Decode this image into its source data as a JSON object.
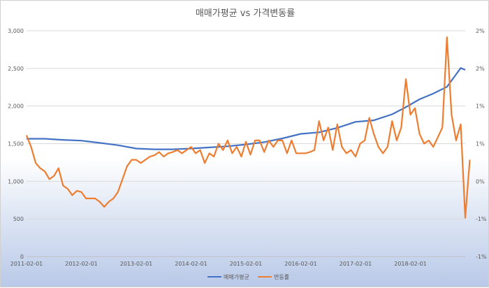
{
  "chart_data": {
    "type": "line",
    "title": "매매가평균 vs 가격변동률",
    "x_tick_labels": [
      "2011-02-01",
      "2012-02-01",
      "2013-02-01",
      "2014-02-01",
      "2015-02-01",
      "2016-02-01",
      "2017-02-01",
      "2018-02-01"
    ],
    "x_range": [
      "2011-02-01",
      "2019-02-01"
    ],
    "y_left": {
      "range": [
        0,
        3000
      ],
      "tick_labels": [
        "0",
        "500",
        "1,000",
        "1,500",
        "2,000",
        "2,500",
        "3,000"
      ]
    },
    "y_right": {
      "range": [
        -1.5,
        2.0
      ],
      "tick_labels": [
        "-1%",
        "-1%",
        "0%",
        "1%",
        "1%",
        "2%",
        "2%"
      ]
    },
    "grid": "horizontal",
    "legend_position": "bottom",
    "series": [
      {
        "name": "매매가평균",
        "axis": "left",
        "color": "#4472c4",
        "points": [
          [
            "2011-02",
            1565
          ],
          [
            "2011-06",
            1565
          ],
          [
            "2011-10",
            1550
          ],
          [
            "2012-02",
            1540
          ],
          [
            "2012-06",
            1510
          ],
          [
            "2012-10",
            1480
          ],
          [
            "2013-02",
            1435
          ],
          [
            "2013-06",
            1425
          ],
          [
            "2013-10",
            1425
          ],
          [
            "2014-02",
            1435
          ],
          [
            "2014-06",
            1450
          ],
          [
            "2014-10",
            1465
          ],
          [
            "2015-02",
            1490
          ],
          [
            "2015-06",
            1520
          ],
          [
            "2015-10",
            1570
          ],
          [
            "2016-02",
            1630
          ],
          [
            "2016-06",
            1650
          ],
          [
            "2016-10",
            1710
          ],
          [
            "2017-02",
            1790
          ],
          [
            "2017-06",
            1810
          ],
          [
            "2017-10",
            1890
          ],
          [
            "2018-01",
            1985
          ],
          [
            "2018-04",
            2090
          ],
          [
            "2018-07",
            2165
          ],
          [
            "2018-10",
            2255
          ],
          [
            "2018-12",
            2420
          ],
          [
            "2019-01",
            2505
          ],
          [
            "2019-02",
            2480
          ]
        ]
      },
      {
        "name": "변동률",
        "axis": "right",
        "color": "#ed7d31",
        "points": [
          [
            "2011-02",
            0.38
          ],
          [
            "2011-03",
            0.2
          ],
          [
            "2011-04",
            -0.05
          ],
          [
            "2011-05",
            -0.13
          ],
          [
            "2011-06",
            -0.18
          ],
          [
            "2011-07",
            -0.3
          ],
          [
            "2011-08",
            -0.25
          ],
          [
            "2011-09",
            -0.13
          ],
          [
            "2011-10",
            -0.4
          ],
          [
            "2011-11",
            -0.45
          ],
          [
            "2011-12",
            -0.55
          ],
          [
            "2012-01",
            -0.48
          ],
          [
            "2012-02",
            -0.5
          ],
          [
            "2012-03",
            -0.6
          ],
          [
            "2012-04",
            -0.6
          ],
          [
            "2012-05",
            -0.6
          ],
          [
            "2012-06",
            -0.65
          ],
          [
            "2012-07",
            -0.73
          ],
          [
            "2012-08",
            -0.65
          ],
          [
            "2012-09",
            -0.6
          ],
          [
            "2012-10",
            -0.5
          ],
          [
            "2012-11",
            -0.3
          ],
          [
            "2012-12",
            -0.1
          ],
          [
            "2013-01",
            0.0
          ],
          [
            "2013-02",
            0.0
          ],
          [
            "2013-03",
            -0.05
          ],
          [
            "2013-04",
            0.0
          ],
          [
            "2013-05",
            0.05
          ],
          [
            "2013-06",
            0.07
          ],
          [
            "2013-07",
            0.12
          ],
          [
            "2013-08",
            0.05
          ],
          [
            "2013-09",
            0.1
          ],
          [
            "2013-10",
            0.12
          ],
          [
            "2013-11",
            0.15
          ],
          [
            "2013-12",
            0.1
          ],
          [
            "2014-01",
            0.15
          ],
          [
            "2014-02",
            0.2
          ],
          [
            "2014-03",
            0.1
          ],
          [
            "2014-04",
            0.15
          ],
          [
            "2014-05",
            -0.05
          ],
          [
            "2014-06",
            0.1
          ],
          [
            "2014-07",
            0.05
          ],
          [
            "2014-08",
            0.25
          ],
          [
            "2014-09",
            0.15
          ],
          [
            "2014-10",
            0.3
          ],
          [
            "2014-11",
            0.1
          ],
          [
            "2014-12",
            0.2
          ],
          [
            "2015-01",
            0.05
          ],
          [
            "2015-02",
            0.28
          ],
          [
            "2015-03",
            0.08
          ],
          [
            "2015-04",
            0.3
          ],
          [
            "2015-05",
            0.3
          ],
          [
            "2015-06",
            0.12
          ],
          [
            "2015-07",
            0.3
          ],
          [
            "2015-08",
            0.2
          ],
          [
            "2015-09",
            0.3
          ],
          [
            "2015-10",
            0.3
          ],
          [
            "2015-11",
            0.1
          ],
          [
            "2015-12",
            0.3
          ],
          [
            "2016-01",
            0.1
          ],
          [
            "2016-02",
            0.1
          ],
          [
            "2016-03",
            0.1
          ],
          [
            "2016-04",
            0.12
          ],
          [
            "2016-05",
            0.15
          ],
          [
            "2016-06",
            0.6
          ],
          [
            "2016-07",
            0.3
          ],
          [
            "2016-08",
            0.5
          ],
          [
            "2016-09",
            0.15
          ],
          [
            "2016-10",
            0.55
          ],
          [
            "2016-11",
            0.2
          ],
          [
            "2016-12",
            0.1
          ],
          [
            "2017-01",
            0.15
          ],
          [
            "2017-02",
            0.05
          ],
          [
            "2017-03",
            0.25
          ],
          [
            "2017-04",
            0.3
          ],
          [
            "2017-05",
            0.65
          ],
          [
            "2017-06",
            0.4
          ],
          [
            "2017-07",
            0.2
          ],
          [
            "2017-08",
            0.1
          ],
          [
            "2017-09",
            0.2
          ],
          [
            "2017-10",
            0.6
          ],
          [
            "2017-11",
            0.3
          ],
          [
            "2017-12",
            0.5
          ],
          [
            "2018-01",
            1.25
          ],
          [
            "2018-02",
            0.7
          ],
          [
            "2018-03",
            0.8
          ],
          [
            "2018-04",
            0.4
          ],
          [
            "2018-05",
            0.25
          ],
          [
            "2018-06",
            0.3
          ],
          [
            "2018-07",
            0.2
          ],
          [
            "2018-08",
            0.35
          ],
          [
            "2018-09",
            0.5
          ],
          [
            "2018-10",
            1.9
          ],
          [
            "2018-11",
            0.7
          ],
          [
            "2018-12",
            0.3
          ],
          [
            "2019-01",
            0.55
          ],
          [
            "2019-02",
            -0.9
          ],
          [
            "2019-03",
            0.0
          ]
        ]
      }
    ]
  }
}
